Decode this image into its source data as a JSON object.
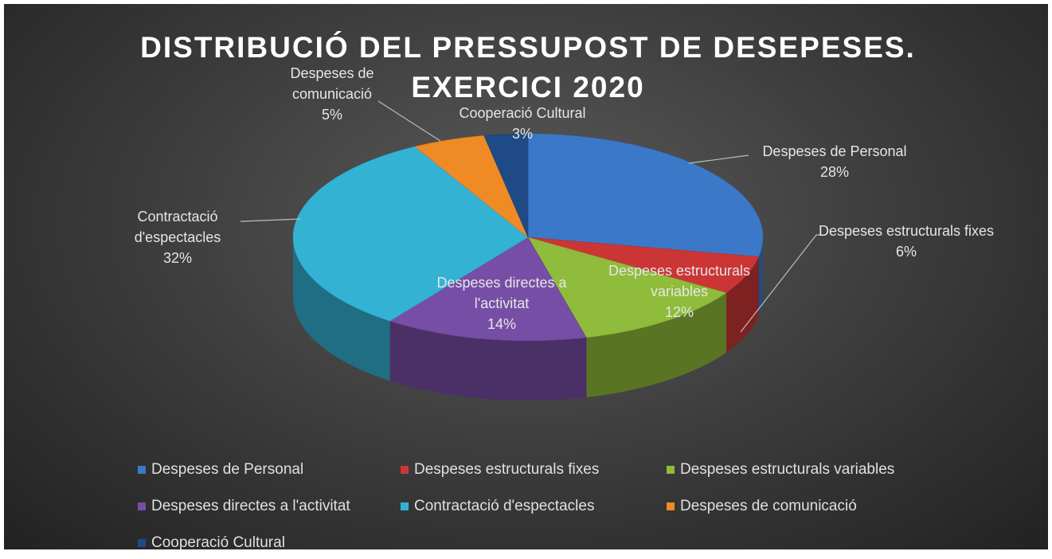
{
  "chart_data": {
    "type": "pie3d",
    "title": "DISTRIBUCIÓ DEL PRESSUPOST DE DESEPESES. EXERCICI 2020",
    "categories": [
      "Despeses de Personal",
      "Despeses estructurals fixes",
      "Despeses estructurals variables",
      "Despeses directes a l'activitat",
      "Contractació d'espectacles",
      "Despeses de comunicació",
      "Cooperació Cultural"
    ],
    "values": [
      28,
      6,
      12,
      14,
      32,
      5,
      3
    ],
    "value_labels": [
      "28%",
      "6%",
      "12%",
      "14%",
      "32%",
      "5%",
      "3%"
    ],
    "colors": [
      "#3b78c8",
      "#cc3535",
      "#8fbc3a",
      "#774ea6",
      "#33b2d4",
      "#ef8a25",
      "#1e4a85"
    ],
    "legend": "bottom"
  }
}
